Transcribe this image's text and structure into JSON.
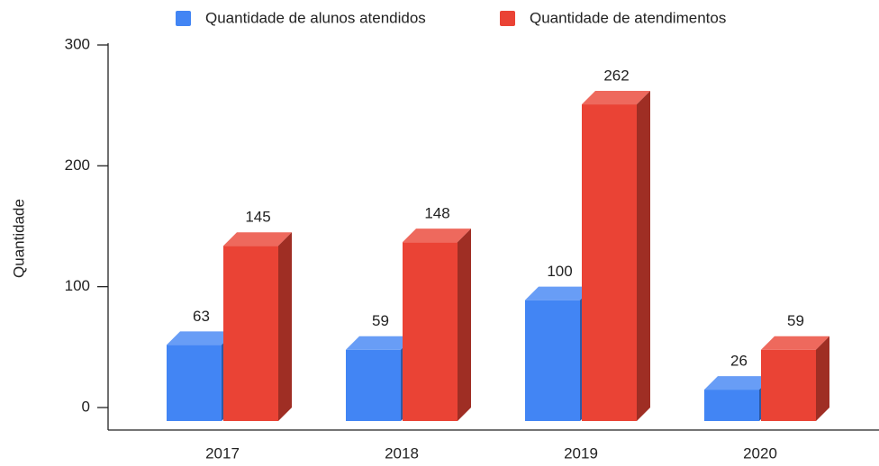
{
  "chart_data": {
    "type": "bar3d",
    "y_label": "Quantidade",
    "categories": [
      "2017",
      "2018",
      "2019",
      "2020"
    ],
    "series": [
      {
        "name": "Quantidade de alunos atendidos",
        "color": "#4285f4",
        "values": [
          63,
          59,
          100,
          26
        ]
      },
      {
        "name": "Quantidade de atendimentos",
        "color": "#ea4335",
        "values": [
          145,
          148,
          262,
          59
        ]
      }
    ],
    "ylim": [
      0,
      300
    ],
    "yticks": [
      0,
      100,
      200,
      300
    ],
    "legend": "top"
  }
}
